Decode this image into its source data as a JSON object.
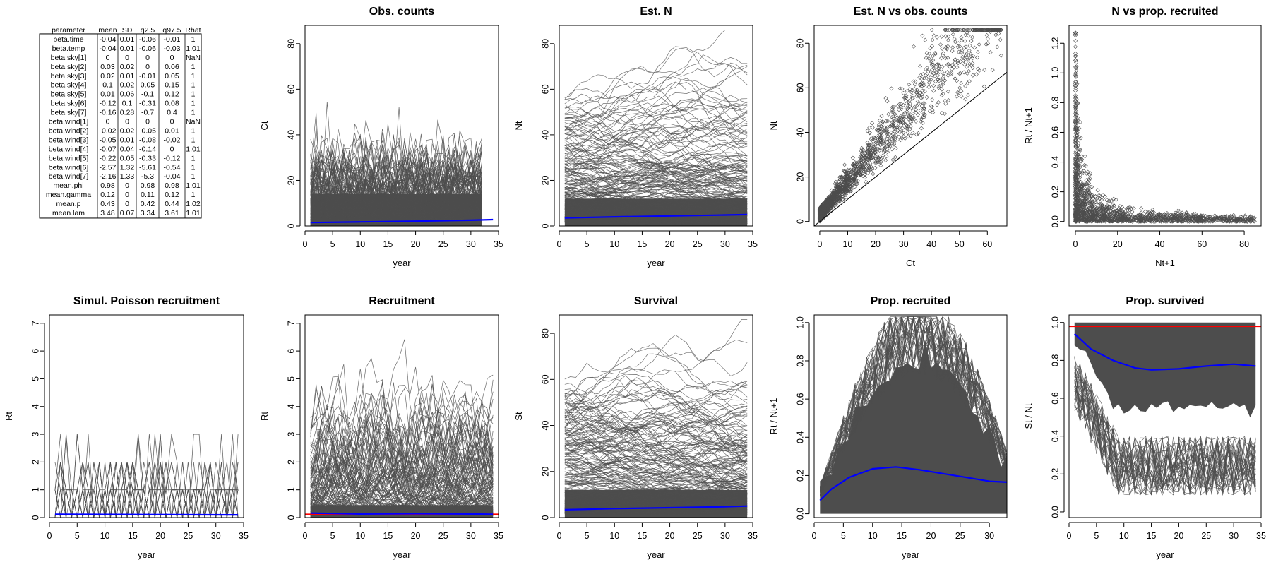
{
  "colors": {
    "line": "#4d4d4d",
    "mean": "#0000ff",
    "ref": "#ff0000",
    "axis": "#000000"
  },
  "summary_table": {
    "headers": [
      "parameter",
      "mean",
      "SD",
      "q2.5",
      "q97.5",
      "Rhat"
    ],
    "rows": [
      [
        "beta.time",
        "-0.04",
        "0.01",
        "-0.06",
        "-0.01",
        "1"
      ],
      [
        "beta.temp",
        "-0.04",
        "0.01",
        "-0.06",
        "-0.03",
        "1.01"
      ],
      [
        "beta.sky[1]",
        "0",
        "0",
        "0",
        "0",
        "NaN"
      ],
      [
        "beta.sky[2]",
        "0.03",
        "0.02",
        "0",
        "0.06",
        "1"
      ],
      [
        "beta.sky[3]",
        "0.02",
        "0.01",
        "-0.01",
        "0.05",
        "1"
      ],
      [
        "beta.sky[4]",
        "0.1",
        "0.02",
        "0.05",
        "0.15",
        "1"
      ],
      [
        "beta.sky[5]",
        "0.01",
        "0.06",
        "-0.1",
        "0.12",
        "1"
      ],
      [
        "beta.sky[6]",
        "-0.12",
        "0.1",
        "-0.31",
        "0.08",
        "1"
      ],
      [
        "beta.sky[7]",
        "-0.16",
        "0.28",
        "-0.7",
        "0.4",
        "1"
      ],
      [
        "beta.wind[1]",
        "0",
        "0",
        "0",
        "0",
        "NaN"
      ],
      [
        "beta.wind[2]",
        "-0.02",
        "0.02",
        "-0.05",
        "0.01",
        "1"
      ],
      [
        "beta.wind[3]",
        "-0.05",
        "0.01",
        "-0.08",
        "-0.02",
        "1"
      ],
      [
        "beta.wind[4]",
        "-0.07",
        "0.04",
        "-0.14",
        "0",
        "1.01"
      ],
      [
        "beta.wind[5]",
        "-0.22",
        "0.05",
        "-0.33",
        "-0.12",
        "1"
      ],
      [
        "beta.wind[6]",
        "-2.57",
        "1.32",
        "-5.61",
        "-0.54",
        "1"
      ],
      [
        "beta.wind[7]",
        "-2.16",
        "1.33",
        "-5.3",
        "-0.04",
        "1"
      ],
      [
        "mean.phi",
        "0.98",
        "0",
        "0.98",
        "0.98",
        "1.01"
      ],
      [
        "mean.gamma",
        "0.12",
        "0",
        "0.11",
        "0.12",
        "1"
      ],
      [
        "mean.p",
        "0.43",
        "0",
        "0.42",
        "0.44",
        "1.02"
      ],
      [
        "mean.lam",
        "3.48",
        "0.07",
        "3.34",
        "3.61",
        "1.01"
      ]
    ]
  },
  "chart_data": [
    {
      "id": "obs_counts",
      "type": "line",
      "title": "Obs. counts",
      "xlabel": "year",
      "ylabel": "Ct",
      "xlim": [
        0,
        35
      ],
      "ylim": [
        0,
        88
      ],
      "xticks": [
        0,
        5,
        10,
        15,
        20,
        25,
        30,
        35
      ],
      "yticks": [
        0,
        20,
        40,
        60,
        80
      ],
      "series_description": "many site-level count trajectories (grey)",
      "x_range": [
        1,
        32
      ],
      "y_typical_max": 25,
      "y_peak": 58,
      "mean_line": {
        "x": [
          1,
          10,
          20,
          30,
          34
        ],
        "y": [
          1.5,
          1.8,
          2.1,
          2.5,
          2.8
        ]
      }
    },
    {
      "id": "est_n",
      "type": "line",
      "title": "Est. N",
      "xlabel": "year",
      "ylabel": "Nt",
      "xlim": [
        0,
        35
      ],
      "ylim": [
        0,
        88
      ],
      "xticks": [
        0,
        5,
        10,
        15,
        20,
        25,
        30,
        35
      ],
      "yticks": [
        0,
        20,
        40,
        60,
        80
      ],
      "x_range": [
        1,
        34
      ],
      "y_typical_max": 40,
      "y_peak": 85,
      "mean_line": {
        "x": [
          1,
          10,
          20,
          30,
          34
        ],
        "y": [
          3.5,
          4.0,
          4.4,
          4.8,
          5.0
        ]
      }
    },
    {
      "id": "est_n_vs_counts",
      "type": "scatter",
      "title": "Est. N vs obs. counts",
      "xlabel": "Ct",
      "ylabel": "Nt",
      "xlim": [
        -2,
        67
      ],
      "ylim": [
        -2,
        88
      ],
      "xticks": [
        0,
        10,
        20,
        30,
        40,
        50,
        60
      ],
      "yticks": [
        0,
        20,
        40,
        60,
        80
      ],
      "reference_line": {
        "slope": 1,
        "intercept": 0
      },
      "x_range": [
        0,
        65
      ],
      "y_peak": 86
    },
    {
      "id": "n_vs_prop_recruited",
      "type": "scatter",
      "title": "N vs prop. recruited",
      "xlabel": "Nt+1",
      "ylabel": "Rt / Nt+1",
      "xlim": [
        -3,
        88
      ],
      "ylim": [
        -0.03,
        1.32
      ],
      "xticks": [
        0,
        20,
        40,
        60,
        80
      ],
      "yticks": [
        0.0,
        0.2,
        0.4,
        0.6,
        0.8,
        1.0,
        1.2
      ],
      "y_peak": 1.27,
      "x_range": [
        0,
        85
      ]
    },
    {
      "id": "simul_poisson",
      "type": "line",
      "title": "Simul. Poisson recruitment",
      "xlabel": "year",
      "ylabel": "Rt",
      "xlim": [
        0,
        35
      ],
      "ylim": [
        0,
        7.3
      ],
      "xticks": [
        0,
        5,
        10,
        15,
        20,
        25,
        30,
        35
      ],
      "yticks": [
        0,
        1,
        2,
        3,
        4,
        5,
        6,
        7
      ],
      "x_range": [
        1,
        34
      ],
      "y_peak": 3,
      "mean_line": {
        "x": [
          1,
          34
        ],
        "y": [
          0.12,
          0.1
        ]
      }
    },
    {
      "id": "recruitment",
      "type": "line",
      "title": "Recruitment",
      "xlabel": "year",
      "ylabel": "Rt",
      "xlim": [
        0,
        35
      ],
      "ylim": [
        0,
        7.3
      ],
      "xticks": [
        0,
        5,
        10,
        15,
        20,
        25,
        30,
        35
      ],
      "yticks": [
        0,
        1,
        2,
        3,
        4,
        5,
        6,
        7
      ],
      "x_range": [
        1,
        34
      ],
      "y_peak": 7.0,
      "reference_line": {
        "y": 0.12
      },
      "mean_line": {
        "x": [
          1,
          10,
          20,
          30,
          34
        ],
        "y": [
          0.16,
          0.13,
          0.14,
          0.13,
          0.12
        ]
      }
    },
    {
      "id": "survival",
      "type": "line",
      "title": "Survival",
      "xlabel": "year",
      "ylabel": "St",
      "xlim": [
        0,
        35
      ],
      "ylim": [
        0,
        88
      ],
      "xticks": [
        0,
        5,
        10,
        15,
        20,
        25,
        30,
        35
      ],
      "yticks": [
        0,
        20,
        40,
        60,
        80
      ],
      "x_range": [
        1,
        34
      ],
      "y_typical_max": 40,
      "y_peak": 85,
      "mean_line": {
        "x": [
          1,
          10,
          20,
          30,
          34
        ],
        "y": [
          3.4,
          3.9,
          4.3,
          4.7,
          5.0
        ]
      }
    },
    {
      "id": "prop_recruited",
      "type": "line",
      "title": "Prop. recruited",
      "xlabel": "year",
      "ylabel": "Rt / Nt+1",
      "xlim": [
        0,
        33
      ],
      "ylim": [
        -0.02,
        1.04
      ],
      "xticks": [
        0,
        5,
        10,
        15,
        20,
        25,
        30
      ],
      "yticks": [
        0.0,
        0.2,
        0.4,
        0.6,
        0.8,
        1.0
      ],
      "x_range": [
        1,
        33
      ],
      "mean_line": {
        "x": [
          1,
          3,
          6,
          10,
          14,
          18,
          22,
          26,
          30,
          33
        ],
        "y": [
          0.07,
          0.13,
          0.19,
          0.235,
          0.245,
          0.23,
          0.21,
          0.19,
          0.17,
          0.165
        ]
      }
    },
    {
      "id": "prop_survived",
      "type": "line",
      "title": "Prop. survived",
      "xlabel": "year",
      "ylabel": "St / Nt",
      "xlim": [
        0,
        35
      ],
      "ylim": [
        -0.03,
        1.04
      ],
      "xticks": [
        0,
        5,
        10,
        15,
        20,
        25,
        30,
        35
      ],
      "yticks": [
        0.0,
        0.2,
        0.4,
        0.6,
        0.8,
        1.0
      ],
      "x_range": [
        1,
        34
      ],
      "reference_line": {
        "y": 0.98
      },
      "mean_line": {
        "x": [
          1,
          4,
          8,
          12,
          15,
          20,
          25,
          30,
          34
        ],
        "y": [
          0.94,
          0.86,
          0.8,
          0.76,
          0.75,
          0.755,
          0.77,
          0.78,
          0.77
        ]
      }
    }
  ]
}
